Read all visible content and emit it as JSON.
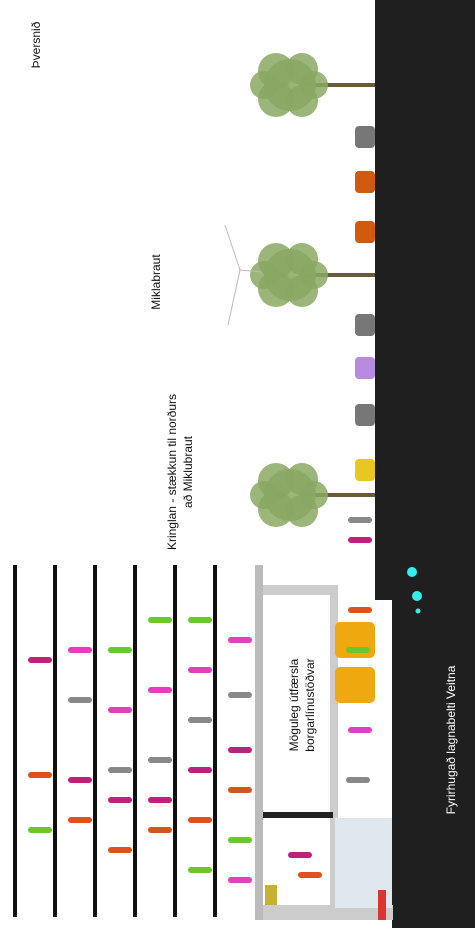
{
  "title": "Þversnið",
  "labels": {
    "road": "Miklabraut",
    "mall": [
      "Kringlan - stækkun til norðurs",
      "að Miklubraut"
    ],
    "station": [
      "Möguleg útfærsla",
      "borgarlínustöðvar"
    ],
    "utilities": "Fyrirhugað lagnabelti Veitna"
  }
}
